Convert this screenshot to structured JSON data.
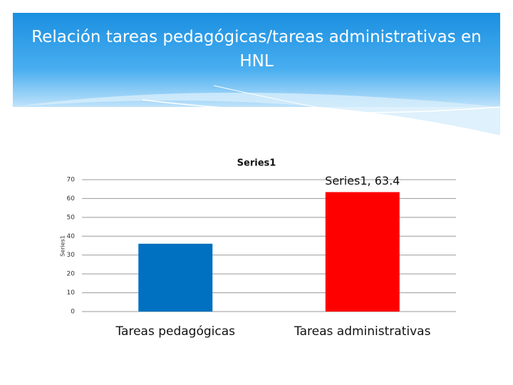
{
  "chart_data": {
    "type": "bar",
    "title": "Relación tareas pedagógicas/tareas administrativas en HNL",
    "chart_title": "Series1",
    "y_label": "Series1",
    "categories": [
      "Tareas pedagógicas",
      "Tareas administrativas"
    ],
    "series": [
      {
        "name": "Series1",
        "colors": [
          "#0070c0",
          "#ff0000"
        ],
        "values": [
          36,
          63.4
        ],
        "value_labels": [
          null,
          "Series1, 63.4"
        ]
      }
    ],
    "ylim": [
      0,
      70
    ],
    "yticks": [
      0,
      10,
      20,
      30,
      40,
      50,
      60,
      70
    ],
    "grid": true
  }
}
